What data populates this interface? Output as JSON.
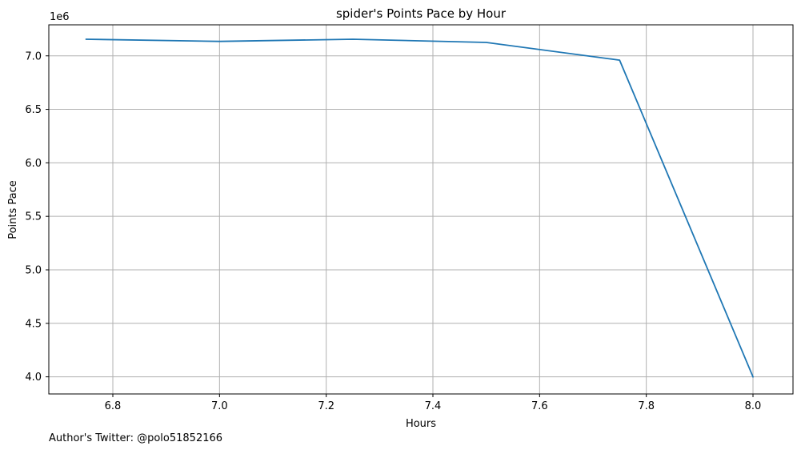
{
  "chart_data": {
    "type": "line",
    "title": "spider's Points Pace by Hour",
    "xlabel": "Hours",
    "ylabel": "Points Pace",
    "y_scale_multiplier": "1e6",
    "xlim": [
      6.68,
      8.075
    ],
    "ylim": [
      3.84,
      7.29
    ],
    "x_ticks": [
      6.8,
      7.0,
      7.2,
      7.4,
      7.6,
      7.8,
      8.0
    ],
    "x_tick_labels": [
      "6.8",
      "7.0",
      "7.2",
      "7.4",
      "7.6",
      "7.8",
      "8.0"
    ],
    "y_ticks": [
      4.0,
      4.5,
      5.0,
      5.5,
      6.0,
      6.5,
      7.0
    ],
    "y_tick_labels": [
      "4.0",
      "4.5",
      "5.0",
      "5.5",
      "6.0",
      "6.5",
      "7.0"
    ],
    "grid": true,
    "series": [
      {
        "color": "#1f77b4",
        "x": [
          6.75,
          7.0,
          7.25,
          7.5,
          7.75,
          8.0
        ],
        "y": [
          7.155,
          7.135,
          7.155,
          7.125,
          6.96,
          4.0
        ]
      }
    ]
  },
  "footnote": "Author's Twitter: @polo51852166"
}
